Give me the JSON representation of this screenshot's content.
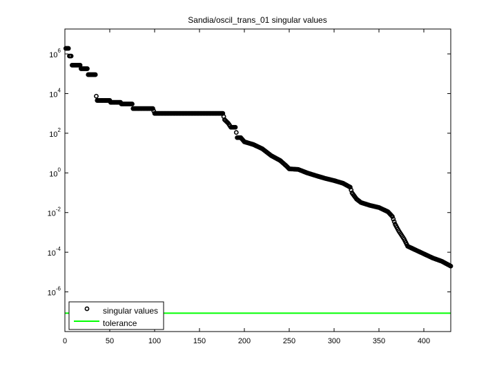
{
  "chart_data": {
    "type": "scatter",
    "title": "Sandia/oscil_trans_01 singular values",
    "xlabel": "",
    "ylabel": "",
    "xlim": [
      0,
      430
    ],
    "ylim": [
      1e-08,
      18000000.0
    ],
    "yscale": "log",
    "grid": false,
    "legend_placement": "bottom-left",
    "x_ticks": [
      0,
      50,
      100,
      150,
      200,
      250,
      300,
      350,
      400
    ],
    "x_tick_labels": [
      "0",
      "50",
      "100",
      "150",
      "200",
      "250",
      "300",
      "350",
      "400"
    ],
    "y_ticks": [
      1e-06,
      0.0001,
      0.01,
      1,
      100.0,
      10000.0,
      1000000.0
    ],
    "y_tick_labels": [
      {
        "base": "10",
        "exp": "-6"
      },
      {
        "base": "10",
        "exp": "-4"
      },
      {
        "base": "10",
        "exp": "-2"
      },
      {
        "base": "10",
        "exp": "0"
      },
      {
        "base": "10",
        "exp": "2"
      },
      {
        "base": "10",
        "exp": "4"
      },
      {
        "base": "10",
        "exp": "6"
      }
    ],
    "series": [
      {
        "name": "singular values",
        "marker": "circle",
        "color": "#000000",
        "points": [
          [
            1,
            1900000.0
          ],
          [
            4,
            1900000.0
          ],
          [
            5,
            780000.0
          ],
          [
            7,
            780000.0
          ],
          [
            8,
            270000.0
          ],
          [
            17,
            270000.0
          ],
          [
            18,
            180000.0
          ],
          [
            25,
            180000.0
          ],
          [
            26,
            90000.0
          ],
          [
            34,
            90000.0
          ],
          [
            35,
            7400.0
          ],
          [
            36,
            4500.0
          ],
          [
            50,
            4500.0
          ],
          [
            51,
            3600.0
          ],
          [
            62,
            3600.0
          ],
          [
            63,
            3000.0
          ],
          [
            75,
            3000.0
          ],
          [
            76,
            1750.0
          ],
          [
            98,
            1750.0
          ],
          [
            100,
            1000.0
          ],
          [
            176,
            1000.0
          ],
          [
            178,
            480
          ],
          [
            182,
            320
          ],
          [
            185,
            200
          ],
          [
            190,
            200
          ],
          [
            192,
            60
          ],
          [
            196,
            60
          ],
          [
            200,
            37
          ],
          [
            210,
            27
          ],
          [
            220,
            16.5
          ],
          [
            230,
            7.4
          ],
          [
            240,
            4.2
          ],
          [
            247,
            2.2
          ],
          [
            250,
            1.6
          ],
          [
            260,
            1.5
          ],
          [
            270,
            1.0
          ],
          [
            280,
            0.72
          ],
          [
            290,
            0.53
          ],
          [
            300,
            0.41
          ],
          [
            310,
            0.3
          ],
          [
            318,
            0.19
          ],
          [
            320,
            0.098
          ],
          [
            325,
            0.048
          ],
          [
            330,
            0.032
          ],
          [
            340,
            0.023
          ],
          [
            350,
            0.018
          ],
          [
            360,
            0.011
          ],
          [
            365,
            0.0063
          ],
          [
            368,
            0.0026
          ],
          [
            372,
            0.0012
          ],
          [
            378,
            0.00046
          ],
          [
            382,
            0.0002
          ],
          [
            390,
            0.000135
          ],
          [
            400,
            8.3e-05
          ],
          [
            410,
            5.1e-05
          ],
          [
            420,
            3.5e-05
          ],
          [
            430,
            2e-05
          ]
        ]
      },
      {
        "name": "tolerance",
        "type": "line",
        "color": "#00ff00",
        "value": 8.5e-08
      }
    ]
  }
}
